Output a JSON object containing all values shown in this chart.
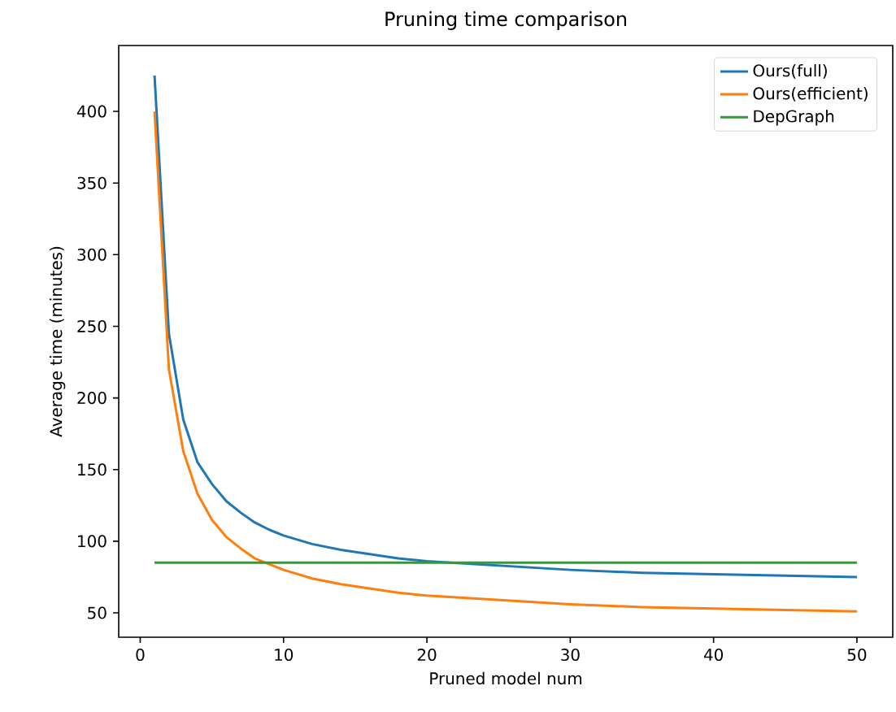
{
  "chart_data": {
    "type": "line",
    "title": "Pruning time comparison",
    "xlabel": "Pruned model num",
    "ylabel": "Average time (minutes)",
    "series": [
      {
        "name": "Ours(full)",
        "color": "#1f77b4",
        "x": [
          1,
          2,
          3,
          4,
          5,
          6,
          7,
          8,
          9,
          10,
          12,
          14,
          16,
          18,
          20,
          25,
          30,
          35,
          40,
          45,
          50
        ],
        "values": [
          425,
          245,
          185,
          155,
          140,
          128,
          120,
          113,
          108,
          104,
          98,
          94,
          91,
          88,
          86,
          83,
          80,
          78,
          77,
          76,
          75
        ]
      },
      {
        "name": "Ours(efficient)",
        "color": "#ff7f0e",
        "x": [
          1,
          2,
          3,
          4,
          5,
          6,
          7,
          8,
          9,
          10,
          12,
          14,
          16,
          18,
          20,
          25,
          30,
          35,
          40,
          45,
          50
        ],
        "values": [
          400,
          220,
          163,
          133,
          115,
          103,
          95,
          88,
          84,
          80,
          74,
          70,
          67,
          64,
          62,
          59,
          56,
          54,
          53,
          52,
          51
        ]
      },
      {
        "name": "DepGraph",
        "color": "#2ca02c",
        "x": [
          1,
          50
        ],
        "values": [
          85,
          85
        ]
      }
    ],
    "xlim": [
      -1.5,
      52.5
    ],
    "ylim": [
      33,
      446
    ],
    "xticks": [
      0,
      10,
      20,
      30,
      40,
      50
    ],
    "yticks": [
      50,
      100,
      150,
      200,
      250,
      300,
      350,
      400
    ],
    "legend": "top right",
    "grid": false,
    "marker": "none",
    "line_style": "solid"
  }
}
